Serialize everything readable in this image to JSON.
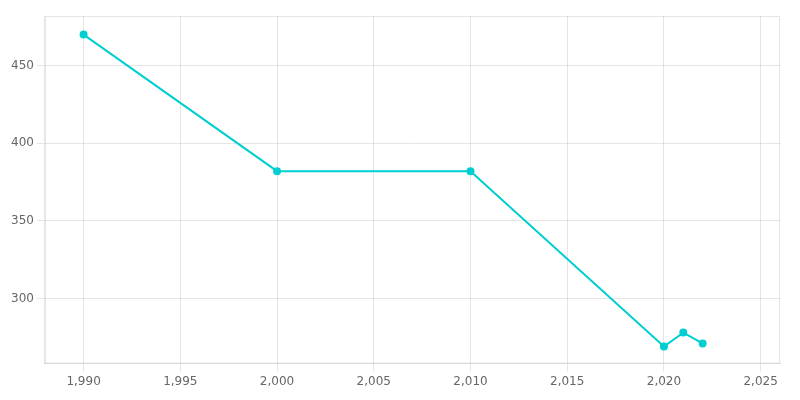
{
  "chart_data": {
    "type": "line",
    "x": [
      1990,
      2000,
      2010,
      2020,
      2021,
      2022
    ],
    "values": [
      470,
      382,
      382,
      269,
      278,
      271
    ],
    "color": "#00CED1",
    "marker": "circle",
    "xlim": [
      1988,
      2026
    ],
    "ylim": [
      258,
      482
    ],
    "xticks": [
      1990,
      1995,
      2000,
      2005,
      2010,
      2015,
      2020,
      2025
    ],
    "yticks": [
      300,
      350,
      400,
      450
    ],
    "grid": true
  }
}
